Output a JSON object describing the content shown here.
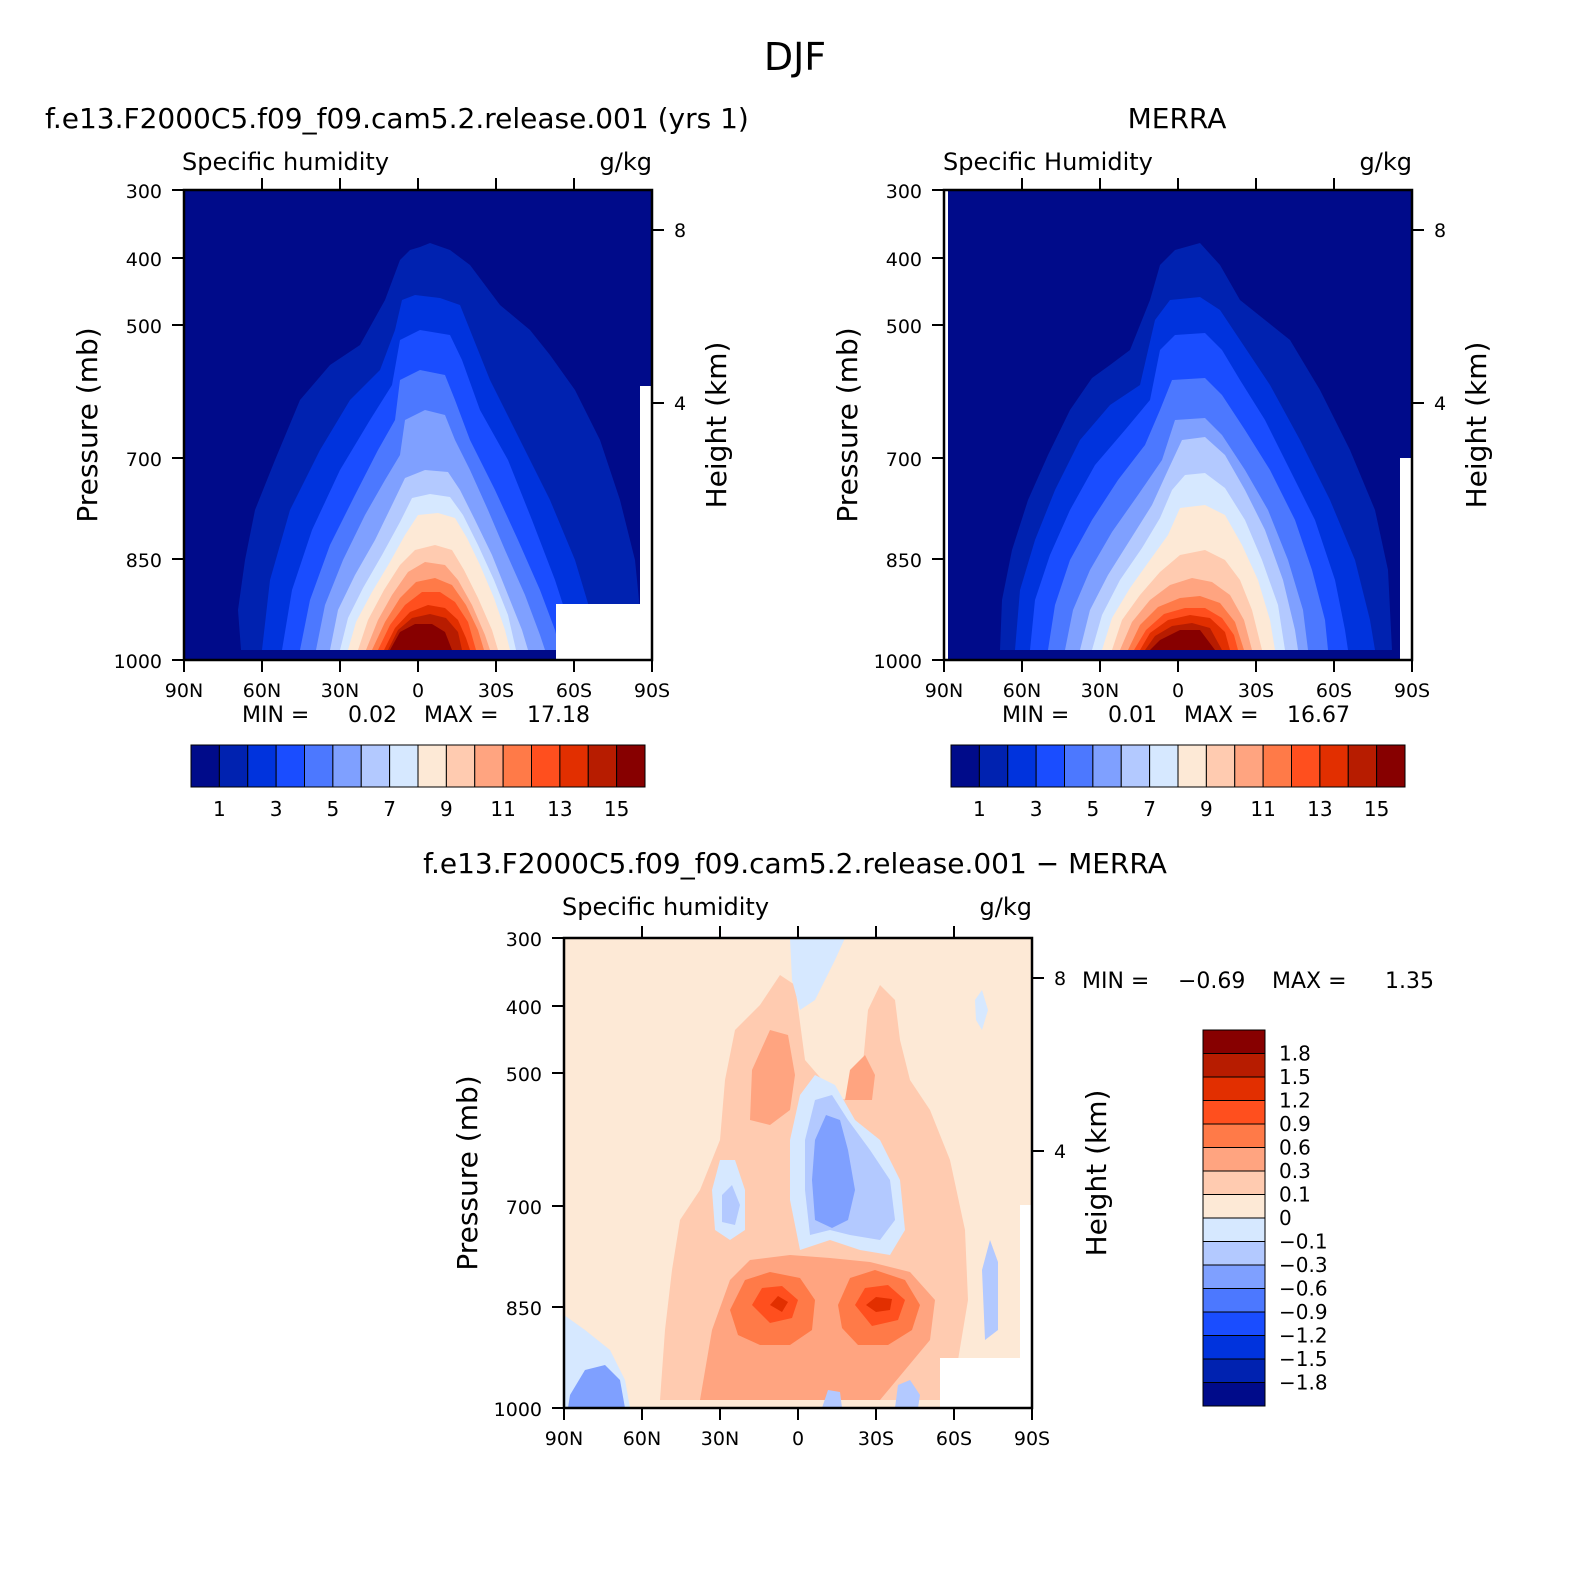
{
  "figure": {
    "title": "DJF"
  },
  "panels": {
    "model": {
      "case_title": "f.e13.F2000C5.f09_f09.cam5.2.release.001 (yrs 1)",
      "variable": "Specific humidity",
      "units": "g/kg",
      "min_label": "MIN =",
      "min_value": "0.02",
      "max_label": "MAX =",
      "max_value": "17.18"
    },
    "obs": {
      "case_title": "MERRA",
      "variable": "Specific Humidity",
      "units": "g/kg",
      "min_label": "MIN =",
      "min_value": "0.01",
      "max_label": "MAX =",
      "max_value": "16.67"
    },
    "diff": {
      "case_title": "f.e13.F2000C5.f09_f09.cam5.2.release.001 − MERRA",
      "variable": "Specific humidity",
      "units": "g/kg",
      "min_label": "MIN =",
      "min_value": "−0.69",
      "max_label": "MAX =",
      "max_value": "1.35"
    }
  },
  "axes": {
    "y_left_label": "Pressure (mb)",
    "y_right_label": "Height (km)"
  },
  "chart_data": [
    {
      "type": "heatmap",
      "id": "model",
      "title": "f.e13.F2000C5.f09_f09.cam5.2.release.001 (yrs 1)",
      "subtitle_left": "Specific humidity",
      "subtitle_right": "g/kg",
      "x_ticks": [
        "90N",
        "60N",
        "30N",
        "0",
        "30S",
        "60S",
        "90S"
      ],
      "x_values": [
        90,
        60,
        30,
        0,
        -30,
        -60,
        -90
      ],
      "y_ticks": [
        "300",
        "400",
        "500",
        "700",
        "850",
        "1000"
      ],
      "y_values": [
        300,
        400,
        500,
        700,
        850,
        1000
      ],
      "ylim": [
        300,
        1000
      ],
      "y2_ticks": [
        "8",
        "4"
      ],
      "y2_values": [
        8,
        4
      ],
      "contour_levels": [
        1,
        2,
        3,
        4,
        5,
        6,
        7,
        8,
        9,
        10,
        11,
        12,
        13,
        14,
        15
      ],
      "min": 0.02,
      "max": 17.18,
      "colorbar_labels": [
        "1",
        "3",
        "5",
        "7",
        "9",
        "11",
        "13",
        "15"
      ],
      "colors": [
        "#000b8a",
        "#0022b0",
        "#0033dd",
        "#1a4dff",
        "#4c78ff",
        "#7fa0ff",
        "#b3c9ff",
        "#d6e8ff",
        "#fde9d6",
        "#ffcbb0",
        "#ffa480",
        "#ff7a48",
        "#ff4f1e",
        "#e22f00",
        "#b71c00",
        "#870000"
      ]
    },
    {
      "type": "heatmap",
      "id": "obs",
      "title": "MERRA",
      "subtitle_left": "Specific Humidity",
      "subtitle_right": "g/kg",
      "x_ticks": [
        "90N",
        "60N",
        "30N",
        "0",
        "30S",
        "60S",
        "90S"
      ],
      "x_values": [
        90,
        60,
        30,
        0,
        -30,
        -60,
        -90
      ],
      "y_ticks": [
        "300",
        "400",
        "500",
        "700",
        "850",
        "1000"
      ],
      "y_values": [
        300,
        400,
        500,
        700,
        850,
        1000
      ],
      "ylim": [
        300,
        1000
      ],
      "y2_ticks": [
        "8",
        "4"
      ],
      "y2_values": [
        8,
        4
      ],
      "contour_levels": [
        1,
        2,
        3,
        4,
        5,
        6,
        7,
        8,
        9,
        10,
        11,
        12,
        13,
        14,
        15
      ],
      "min": 0.01,
      "max": 16.67,
      "colorbar_labels": [
        "1",
        "3",
        "5",
        "7",
        "9",
        "11",
        "13",
        "15"
      ],
      "colors": [
        "#000b8a",
        "#0022b0",
        "#0033dd",
        "#1a4dff",
        "#4c78ff",
        "#7fa0ff",
        "#b3c9ff",
        "#d6e8ff",
        "#fde9d6",
        "#ffcbb0",
        "#ffa480",
        "#ff7a48",
        "#ff4f1e",
        "#e22f00",
        "#b71c00",
        "#870000"
      ]
    },
    {
      "type": "heatmap",
      "id": "diff",
      "title": "f.e13.F2000C5.f09_f09.cam5.2.release.001 − MERRA",
      "subtitle_left": "Specific humidity",
      "subtitle_right": "g/kg",
      "x_ticks": [
        "90N",
        "60N",
        "30N",
        "0",
        "30S",
        "60S",
        "90S"
      ],
      "x_values": [
        90,
        60,
        30,
        0,
        -30,
        -60,
        -90
      ],
      "y_ticks": [
        "300",
        "400",
        "500",
        "700",
        "850",
        "1000"
      ],
      "y_values": [
        300,
        400,
        500,
        700,
        850,
        1000
      ],
      "ylim": [
        300,
        1000
      ],
      "y2_ticks": [
        "8",
        "4"
      ],
      "y2_values": [
        8,
        4
      ],
      "contour_levels": [
        -1.8,
        -1.5,
        -1.2,
        -0.9,
        -0.6,
        -0.3,
        -0.1,
        0,
        0.1,
        0.3,
        0.6,
        0.9,
        1.2,
        1.5,
        1.8
      ],
      "min": -0.69,
      "max": 1.35,
      "colorbar_labels": [
        "1.8",
        "1.5",
        "1.2",
        "0.9",
        "0.6",
        "0.3",
        "0.1",
        "0",
        "−0.1",
        "−0.3",
        "−0.6",
        "−0.9",
        "−1.2",
        "−1.5",
        "−1.8"
      ],
      "colors": [
        "#000b8a",
        "#0022b0",
        "#0033dd",
        "#1a4dff",
        "#4c78ff",
        "#7fa0ff",
        "#b3c9ff",
        "#d6e8ff",
        "#fde9d6",
        "#ffcbb0",
        "#ffa480",
        "#ff7a48",
        "#ff4f1e",
        "#e22f00",
        "#b71c00",
        "#870000"
      ]
    }
  ]
}
